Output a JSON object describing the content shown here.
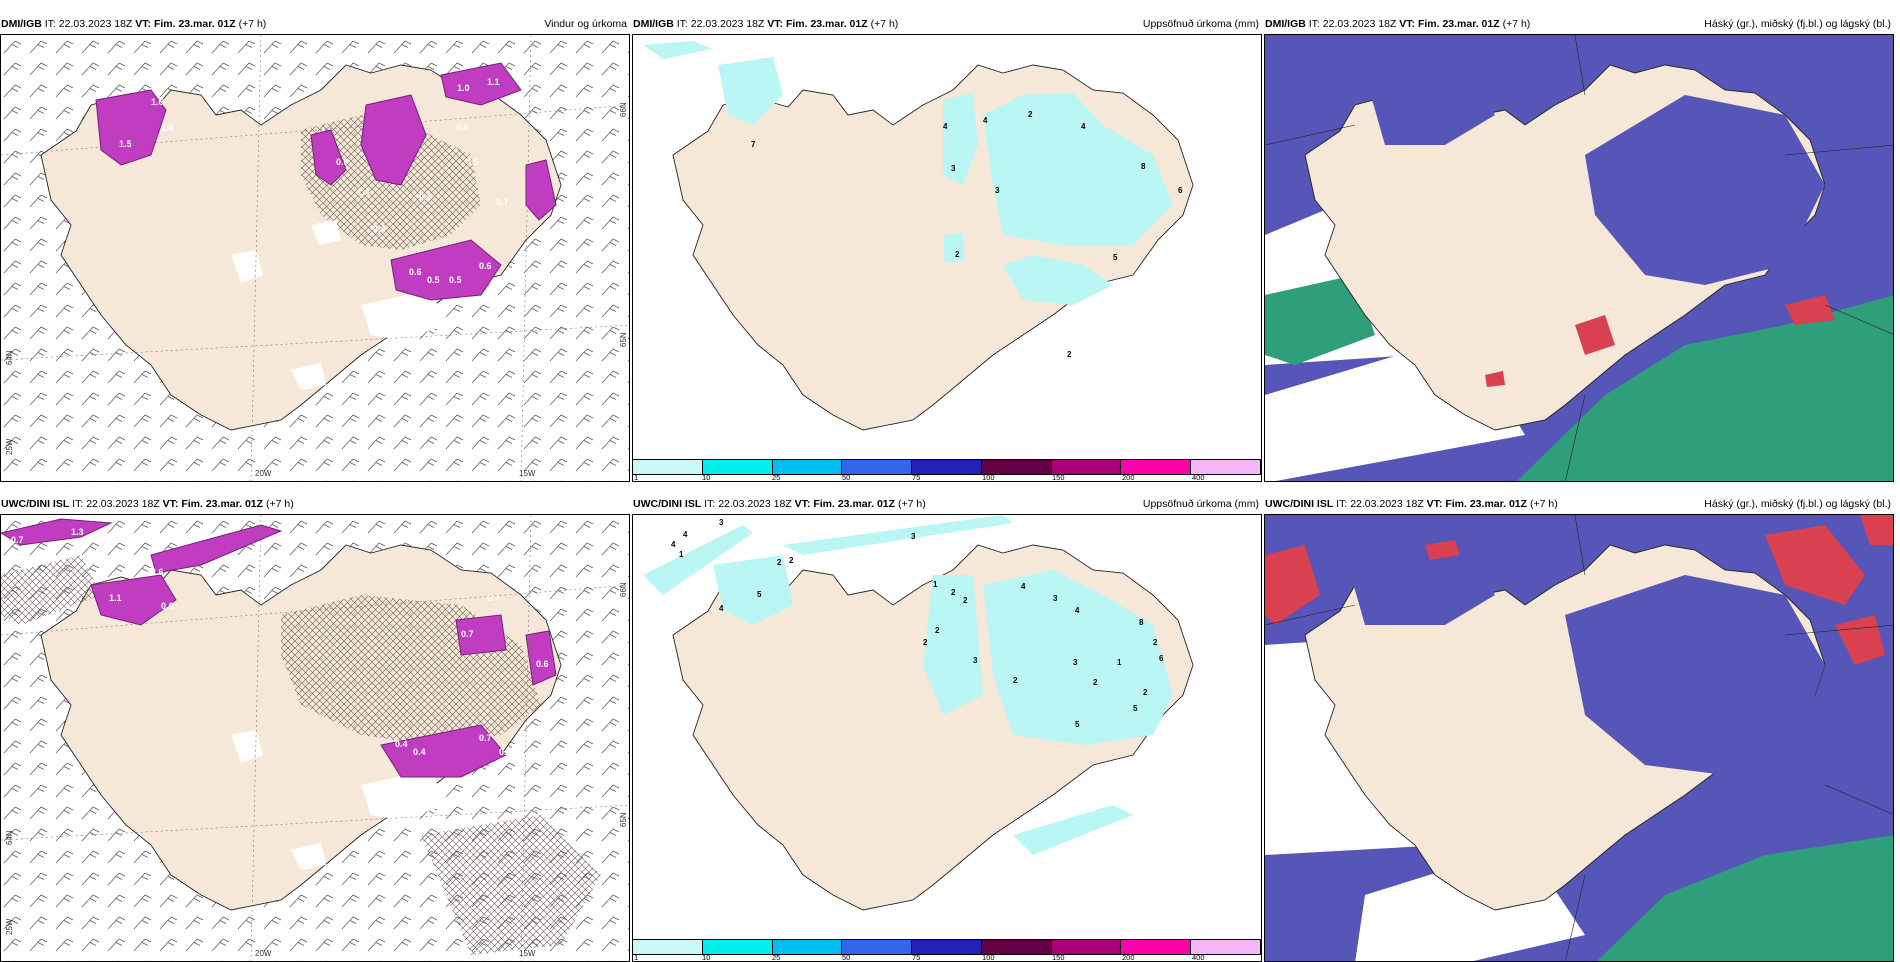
{
  "panels": [
    {
      "id": "dmi-wind",
      "source": "DMI/IGB",
      "it_label": "IT:",
      "issue_time": "22.03.2023 18Z",
      "vt_label": "VT:",
      "valid_time": "Fim. 23.mar. 01Z",
      "lead": "(+7 h)",
      "title": "Vindur og úrkoma",
      "ticks": [
        "20W",
        "15W",
        "66N",
        "64N",
        "65N",
        "25W"
      ],
      "labels": [
        "1.0",
        "1.1",
        "1.4",
        "1.6",
        "1.5",
        "0.6",
        "0.5",
        "0.9",
        "1.4",
        "0.4",
        "0.4",
        "0.7",
        "0.6",
        "0.6",
        "0.5",
        "0.5",
        "0.4"
      ]
    },
    {
      "id": "dmi-precip",
      "source": "DMI/IGB",
      "it_label": "IT:",
      "issue_time": "22.03.2023 18Z",
      "vt_label": "VT:",
      "valid_time": "Fim. 23.mar. 01Z",
      "lead": "(+7 h)",
      "title": "Uppsöfnuð úrkoma (mm)",
      "labels": [
        "7",
        "4",
        "4",
        "2",
        "4",
        "3",
        "3",
        "8",
        "6",
        "2",
        "5",
        "2"
      ]
    },
    {
      "id": "dmi-cloud",
      "source": "DMI/IGB",
      "it_label": "IT:",
      "issue_time": "22.03.2023 18Z",
      "vt_label": "VT:",
      "valid_time": "Fim. 23.mar. 01Z",
      "lead": "(+7 h)",
      "title": "Háský (gr.), miðský (fj.bl.) og lágský (bl.)"
    },
    {
      "id": "uwc-wind",
      "source": "UWC/DINI ISL",
      "it_label": "IT:",
      "issue_time": "22.03.2023 18Z",
      "vt_label": "VT:",
      "valid_time": "Fim. 23.mar. 01Z",
      "lead": "(+7 h)",
      "title": "",
      "ticks": [
        "20W",
        "15W",
        "66N",
        "64N",
        "65N",
        "25W"
      ],
      "labels": [
        "0.7",
        "1.3",
        "2.6",
        "1.1",
        "0.6",
        "0.4",
        "0.7",
        "0.6",
        "0.4",
        "0.4",
        "0.7",
        "0.5"
      ]
    },
    {
      "id": "uwc-precip",
      "source": "UWC/DINI ISL",
      "it_label": "IT:",
      "issue_time": "22.03.2023 18Z",
      "vt_label": "VT:",
      "valid_time": "Fim. 23.mar. 01Z",
      "lead": "(+7 h)",
      "title": "Uppsöfnuð úrkoma (mm)",
      "labels": [
        "3",
        "4",
        "4",
        "1",
        "3",
        "2",
        "2",
        "5",
        "4",
        "1",
        "1",
        "2",
        "2",
        "2",
        "4",
        "3",
        "4",
        "8",
        "2",
        "3",
        "2",
        "1",
        "5",
        "6",
        "2",
        "3",
        "5",
        "2"
      ]
    },
    {
      "id": "uwc-cloud",
      "source": "UWC/DINI ISL",
      "it_label": "IT:",
      "issue_time": "22.03.2023 18Z",
      "vt_label": "VT:",
      "valid_time": "Fim. 23.mar. 01Z",
      "lead": "(+7 h)",
      "title": "Háský (gr.), miðský (fj.bl.) og lágský (bl.)"
    }
  ],
  "precip_scale": {
    "labels": [
      "1",
      "10",
      "25",
      "50",
      "75",
      "100",
      "150",
      "200",
      "400"
    ],
    "colors": [
      "#c8f8f8",
      "#00eeee",
      "#00bfef",
      "#3366ee",
      "#2222bb",
      "#660044",
      "#aa0077",
      "#ff00aa",
      "#f7b6f7"
    ]
  },
  "colors": {
    "land": "#f6e8d8",
    "land_dark": "#e3d2bd",
    "precip_light": "#b9f6f4",
    "wind_precip": "#c03cc0",
    "cloud_mid": "#5656b9",
    "cloud_high_green": "#2f9e7a",
    "cloud_red": "#d94050"
  }
}
